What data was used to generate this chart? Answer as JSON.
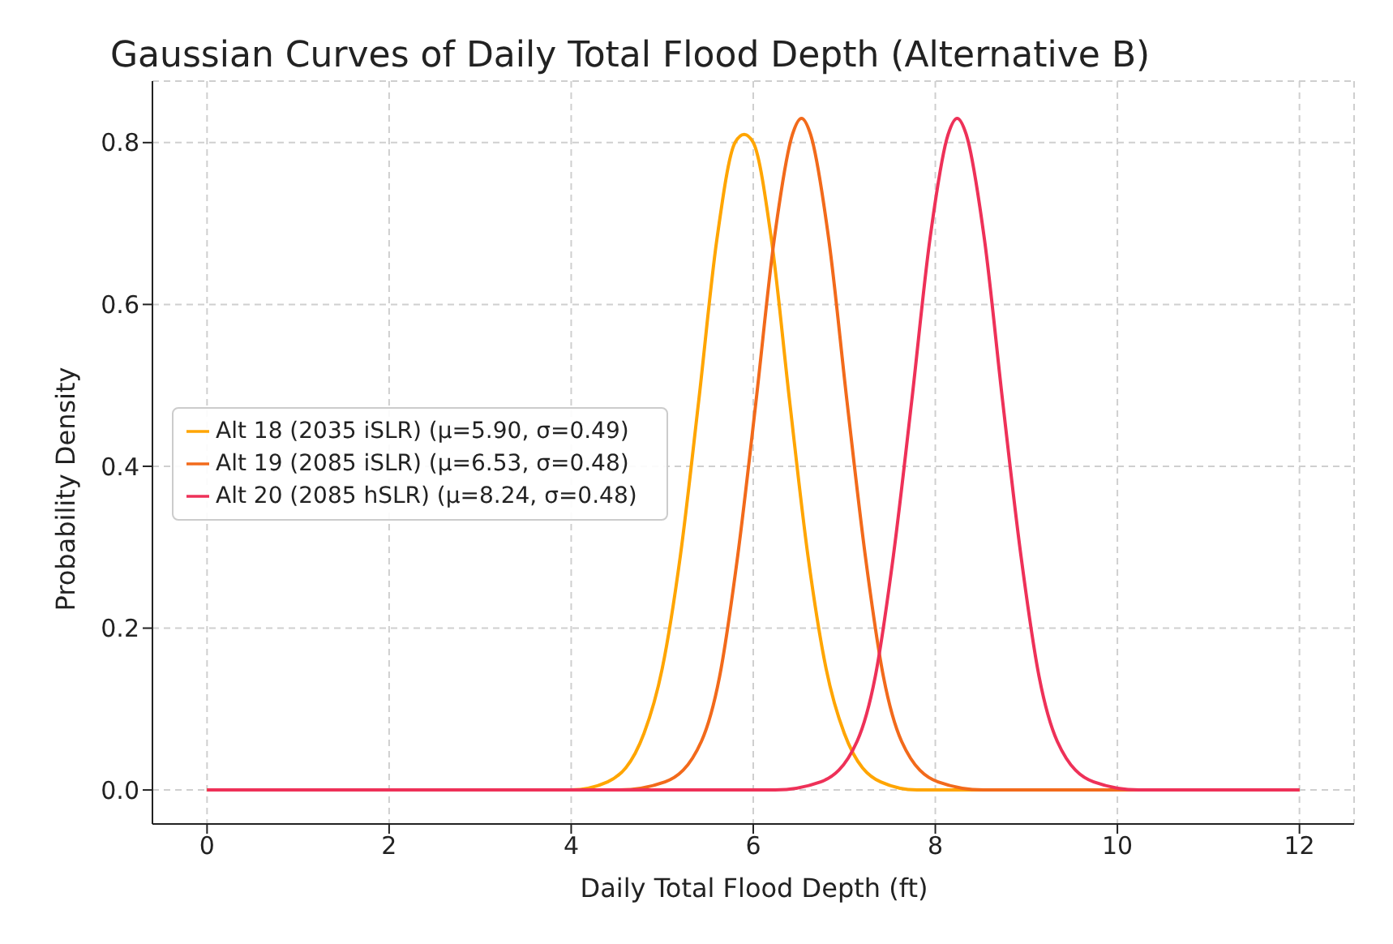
{
  "chart_data": {
    "type": "line",
    "title": "Gaussian Curves of Daily Total Flood Depth (Alternative B)",
    "xlabel": "Daily Total Flood Depth (ft)",
    "ylabel": "Probability Density",
    "xlim": [
      -0.6,
      12.6
    ],
    "xticks": [
      0,
      2,
      4,
      6,
      8,
      10,
      12
    ],
    "ylim": [
      -0.042,
      0.876
    ],
    "yticks": [
      {
        "value": 0,
        "label": "0.0"
      },
      {
        "value": 0.2,
        "label": "0.2"
      },
      {
        "value": 0.4,
        "label": "0.4"
      },
      {
        "value": 0.6,
        "label": "0.6"
      },
      {
        "value": 0.8,
        "label": "0.8"
      }
    ],
    "grid": true,
    "legend": "left",
    "marker": "none",
    "line_style": "solid",
    "series": [
      {
        "name": "Alt 18 (2035 iSLR) (μ=5.90, σ=0.49)",
        "color": "#ffa500",
        "x": [
          0,
          3,
          4,
          4.4,
          4.8,
          5.0,
          5.2,
          5.4,
          5.6,
          5.8,
          5.9,
          6.0,
          6.2,
          6.4,
          6.6,
          6.8,
          7.0,
          7.4,
          7.8,
          9,
          12
        ],
        "values": [
          0,
          0,
          0,
          0.01,
          0.07,
          0.15,
          0.29,
          0.48,
          0.68,
          0.8,
          0.81,
          0.8,
          0.68,
          0.48,
          0.29,
          0.15,
          0.07,
          0.01,
          0,
          0,
          0
        ]
      },
      {
        "name": "Alt 19 (2085 iSLR) (μ=6.53, σ=0.48)",
        "color": "#f26a1b",
        "x": [
          0,
          3,
          4.53,
          5.03,
          5.43,
          5.63,
          5.83,
          6.03,
          6.23,
          6.43,
          6.53,
          6.63,
          6.83,
          7.03,
          7.23,
          7.43,
          7.63,
          8.03,
          8.53,
          10,
          12
        ],
        "values": [
          0,
          0,
          0,
          0.01,
          0.06,
          0.14,
          0.29,
          0.48,
          0.68,
          0.81,
          0.83,
          0.81,
          0.68,
          0.48,
          0.29,
          0.14,
          0.06,
          0.01,
          0,
          0,
          0
        ]
      },
      {
        "name": "Alt 20 (2085 hSLR) (μ=8.24, σ=0.48)",
        "color": "#ee3158",
        "x": [
          0,
          6,
          6.24,
          6.74,
          7.14,
          7.34,
          7.54,
          7.74,
          7.94,
          8.14,
          8.24,
          8.34,
          8.54,
          8.74,
          8.94,
          9.14,
          9.34,
          9.74,
          10.24,
          11,
          12
        ],
        "values": [
          0,
          0,
          0,
          0.01,
          0.06,
          0.14,
          0.29,
          0.48,
          0.68,
          0.81,
          0.83,
          0.81,
          0.68,
          0.48,
          0.29,
          0.14,
          0.06,
          0.01,
          0,
          0,
          0
        ]
      }
    ]
  }
}
